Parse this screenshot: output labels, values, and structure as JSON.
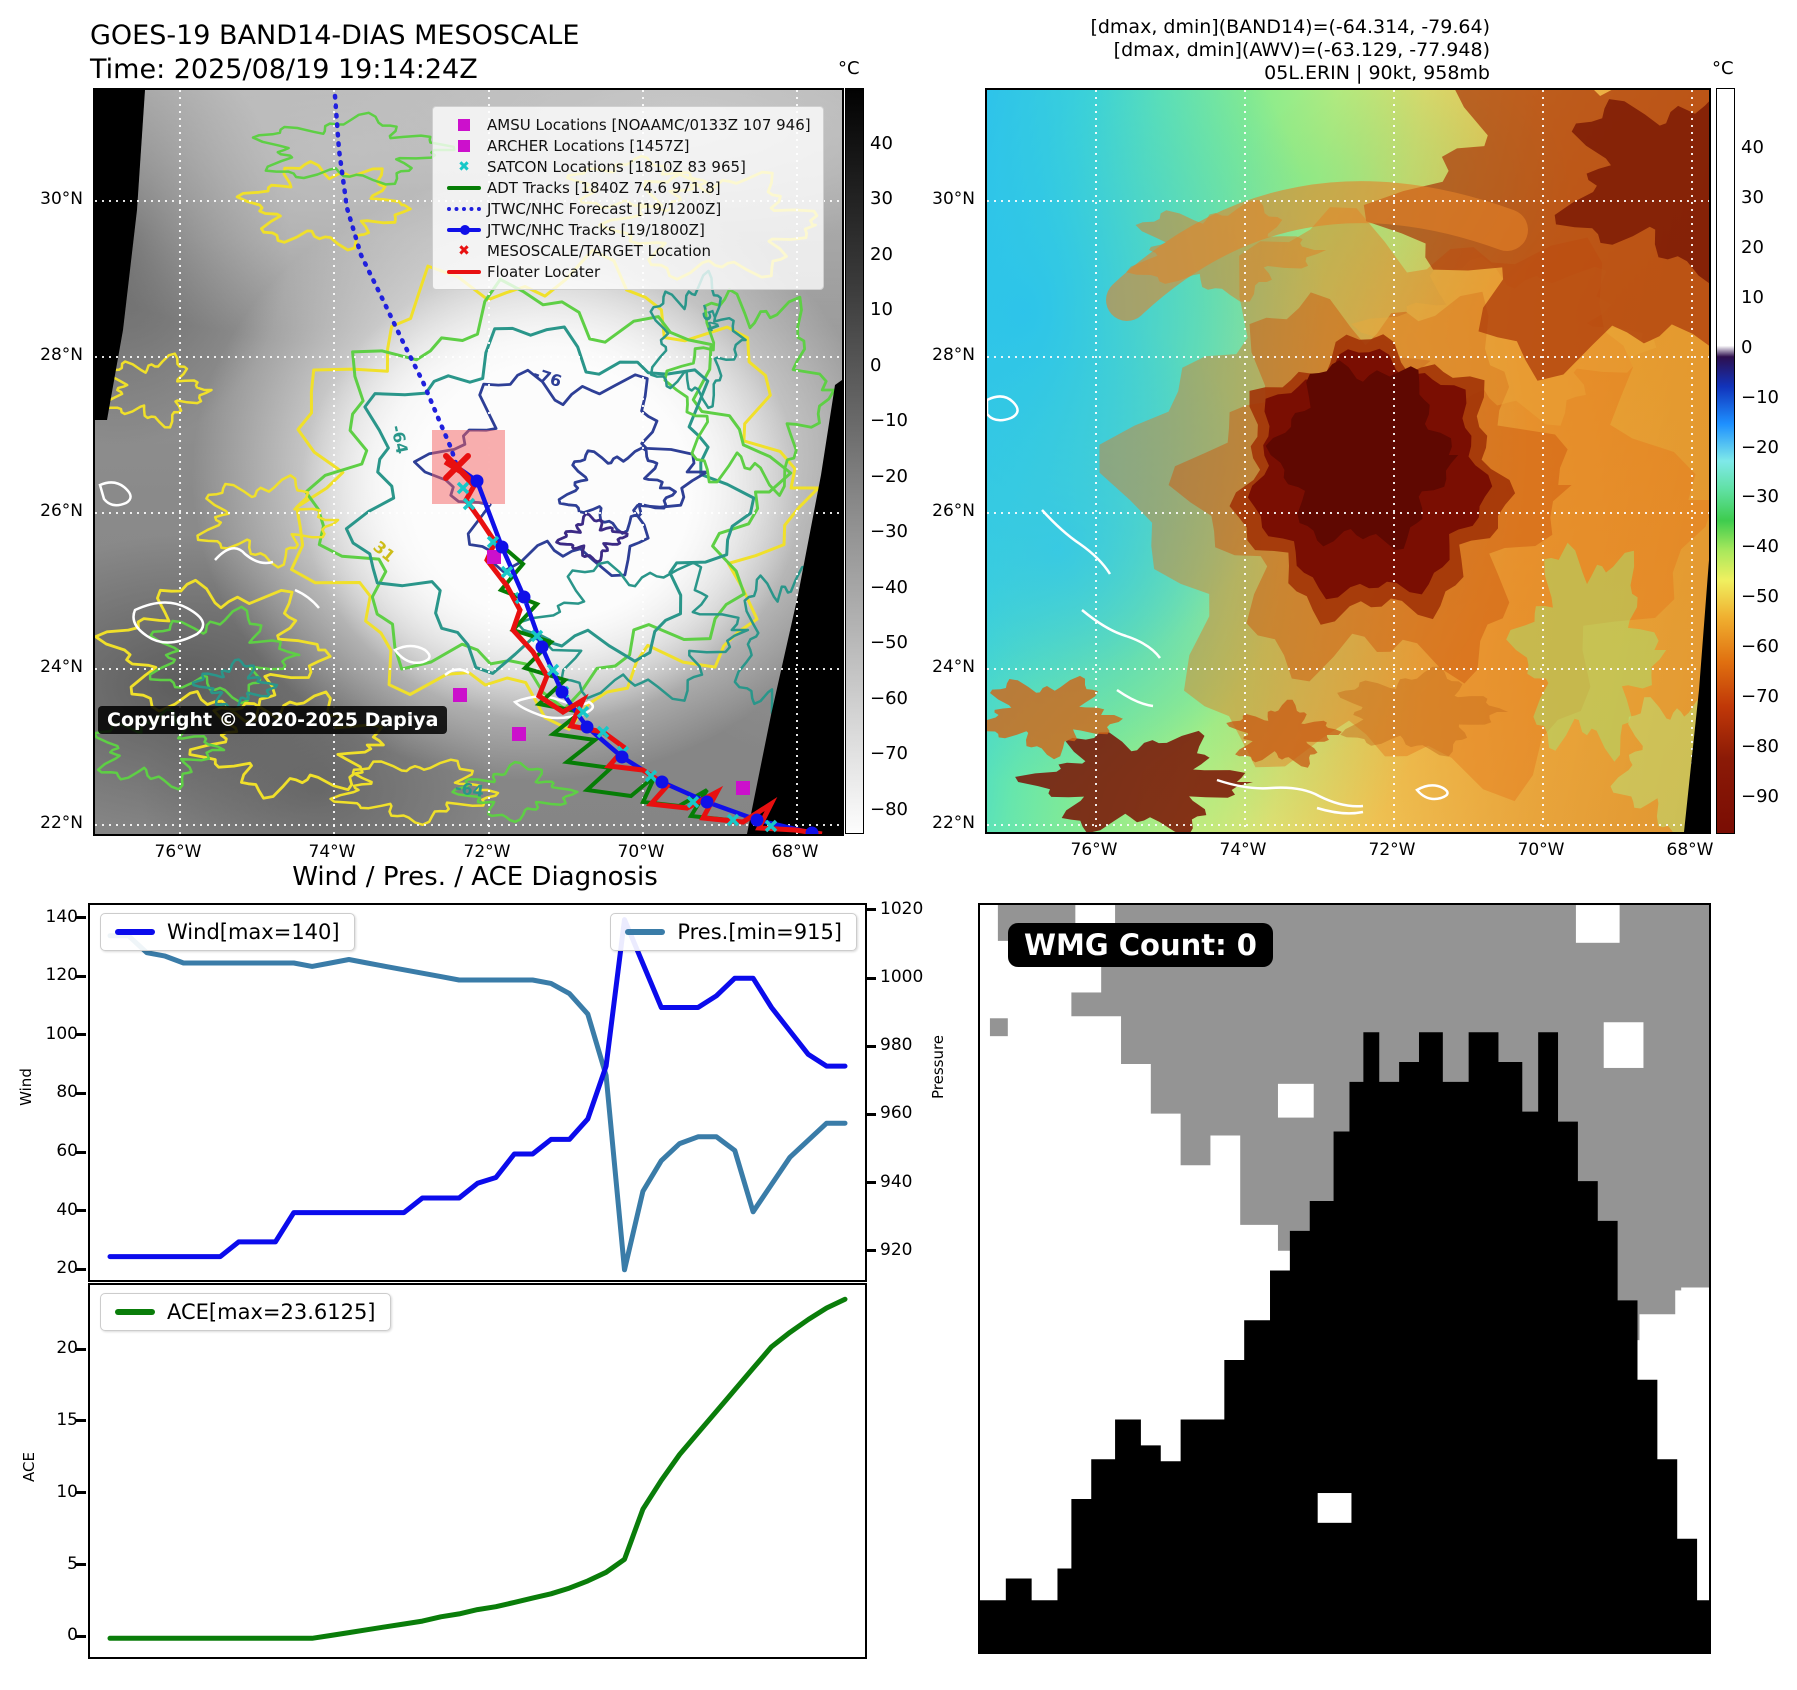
{
  "header": {
    "left_title": "GOES-19 BAND14-DIAS MESOSCALE",
    "left_subtitle": "Time: 2025/08/19 19:14:24Z",
    "right_line1": "[dmax, dmin](BAND14)=(-64.314, -79.64)",
    "right_line2": "[dmax, dmin](AWV)=(-63.129, -77.948)",
    "right_line3": "05L.ERIN | 90kt, 958mb"
  },
  "left_map": {
    "copyright": "Copyright © 2020-2025 Dapiya",
    "lat_labels": [
      "30°N",
      "28°N",
      "26°N",
      "24°N",
      "22°N"
    ],
    "lon_labels": [
      "76°W",
      "74°W",
      "72°W",
      "70°W",
      "68°W"
    ],
    "colorbar_unit": "°C",
    "colorbar_ticks": [
      40,
      30,
      20,
      10,
      0,
      -10,
      -20,
      -30,
      -40,
      -50,
      -60,
      -70,
      -80
    ],
    "contour_labels": [
      "-76",
      "-64",
      "-54",
      "31",
      "-64"
    ],
    "legend_items": [
      {
        "label": "AMSU Locations [NOAAMC/0133Z 107 946]",
        "marker": "square",
        "color": "#cc10cc"
      },
      {
        "label": "ARCHER Locations [1457Z]",
        "marker": "square",
        "color": "#cc10cc"
      },
      {
        "label": "SATCON Locations [1810Z 83 965]",
        "marker": "x",
        "color": "#18c8c8"
      },
      {
        "label": "ADT Tracks [1840Z 74.6 971.8]",
        "marker": "line",
        "color": "#067d06"
      },
      {
        "label": "JTWC/NHC Forecast [19/1200Z]",
        "marker": "dotted",
        "color": "#2020dd"
      },
      {
        "label": "JTWC/NHC Tracks [19/1800Z]",
        "marker": "linedot",
        "color": "#1010e8"
      },
      {
        "label": "MESOSCALE/TARGET Location",
        "marker": "x",
        "color": "#e81010"
      },
      {
        "label": "Floater Locater",
        "marker": "line",
        "color": "#e81010"
      }
    ]
  },
  "right_map": {
    "lat_labels": [
      "30°N",
      "28°N",
      "26°N",
      "24°N",
      "22°N"
    ],
    "lon_labels": [
      "76°W",
      "74°W",
      "72°W",
      "70°W",
      "68°W"
    ],
    "colorbar_unit": "°C",
    "colorbar_ticks": [
      40,
      30,
      20,
      10,
      0,
      -10,
      -20,
      -30,
      -40,
      -50,
      -60,
      -70,
      -80,
      -90
    ]
  },
  "charts": {
    "title": "Wind / Pres. / ACE Diagnosis",
    "wind_axis_label": "Wind",
    "pressure_axis_label": "Pressure",
    "ace_axis_label": "ACE"
  },
  "wmg": {
    "count_label": "WMG Count: 0"
  },
  "chart_data": [
    {
      "type": "line",
      "title": "Wind / Pres. / ACE Diagnosis",
      "x_description": "forecast/track time steps (x axis unlabeled)",
      "series": [
        {
          "name": "Wind[max=140]",
          "axis": "left",
          "color": "#0b0bec",
          "values": [
            25,
            25,
            25,
            25,
            25,
            25,
            25,
            30,
            30,
            30,
            40,
            40,
            40,
            40,
            40,
            40,
            40,
            45,
            45,
            45,
            50,
            52,
            60,
            60,
            65,
            65,
            72,
            90,
            140,
            125,
            110,
            110,
            110,
            114,
            120,
            120,
            110,
            102,
            94,
            90,
            90
          ]
        },
        {
          "name": "Pres.[min=915]",
          "axis": "right",
          "color": "#3a7ca8",
          "values": [
            1013,
            1013,
            1008,
            1007,
            1005,
            1005,
            1005,
            1005,
            1005,
            1005,
            1005,
            1004,
            1005,
            1006,
            1005,
            1004,
            1003,
            1002,
            1001,
            1000,
            1000,
            1000,
            1000,
            1000,
            999,
            996,
            990,
            972,
            915,
            938,
            947,
            952,
            954,
            954,
            950,
            932,
            940,
            948,
            953,
            958,
            958
          ]
        }
      ],
      "ylabel_left": "Wind",
      "ylabel_right": "Pressure",
      "yticks_left": [
        20,
        40,
        60,
        80,
        100,
        120,
        140
      ],
      "yticks_right": [
        920,
        940,
        960,
        980,
        1000,
        1020
      ],
      "ylim_left": [
        17,
        145
      ],
      "ylim_right": [
        912,
        1022
      ],
      "grid": false,
      "legend_position": "upper-left and upper-right"
    },
    {
      "type": "line",
      "series": [
        {
          "name": "ACE[max=23.6125]",
          "color": "#0a7d0a",
          "values": [
            0,
            0,
            0,
            0,
            0,
            0,
            0,
            0,
            0,
            0,
            0,
            0,
            0.2,
            0.4,
            0.6,
            0.8,
            1.0,
            1.2,
            1.5,
            1.7,
            2.0,
            2.2,
            2.5,
            2.8,
            3.1,
            3.5,
            4.0,
            4.6,
            5.5,
            9.0,
            11.0,
            12.8,
            14.3,
            15.8,
            17.3,
            18.8,
            20.3,
            21.3,
            22.2,
            23.0,
            23.6125
          ]
        }
      ],
      "ylabel": "ACE",
      "yticks": [
        0,
        5,
        10,
        15,
        20
      ],
      "ylim": [
        -1.3,
        24.6
      ],
      "grid": false,
      "legend_position": "upper-left"
    }
  ],
  "colors": {
    "forecast_track": "#2020dd",
    "best_track": "#1010e8",
    "adt_track": "#067d06",
    "floater": "#e81010",
    "satcon": "#18c8c8",
    "amsu_archer": "#cc10cc",
    "target_x": "#e81010",
    "target_box": "rgba(244,96,96,0.5)",
    "wmg_gray": "#949494",
    "wmg_black": "#000000"
  }
}
